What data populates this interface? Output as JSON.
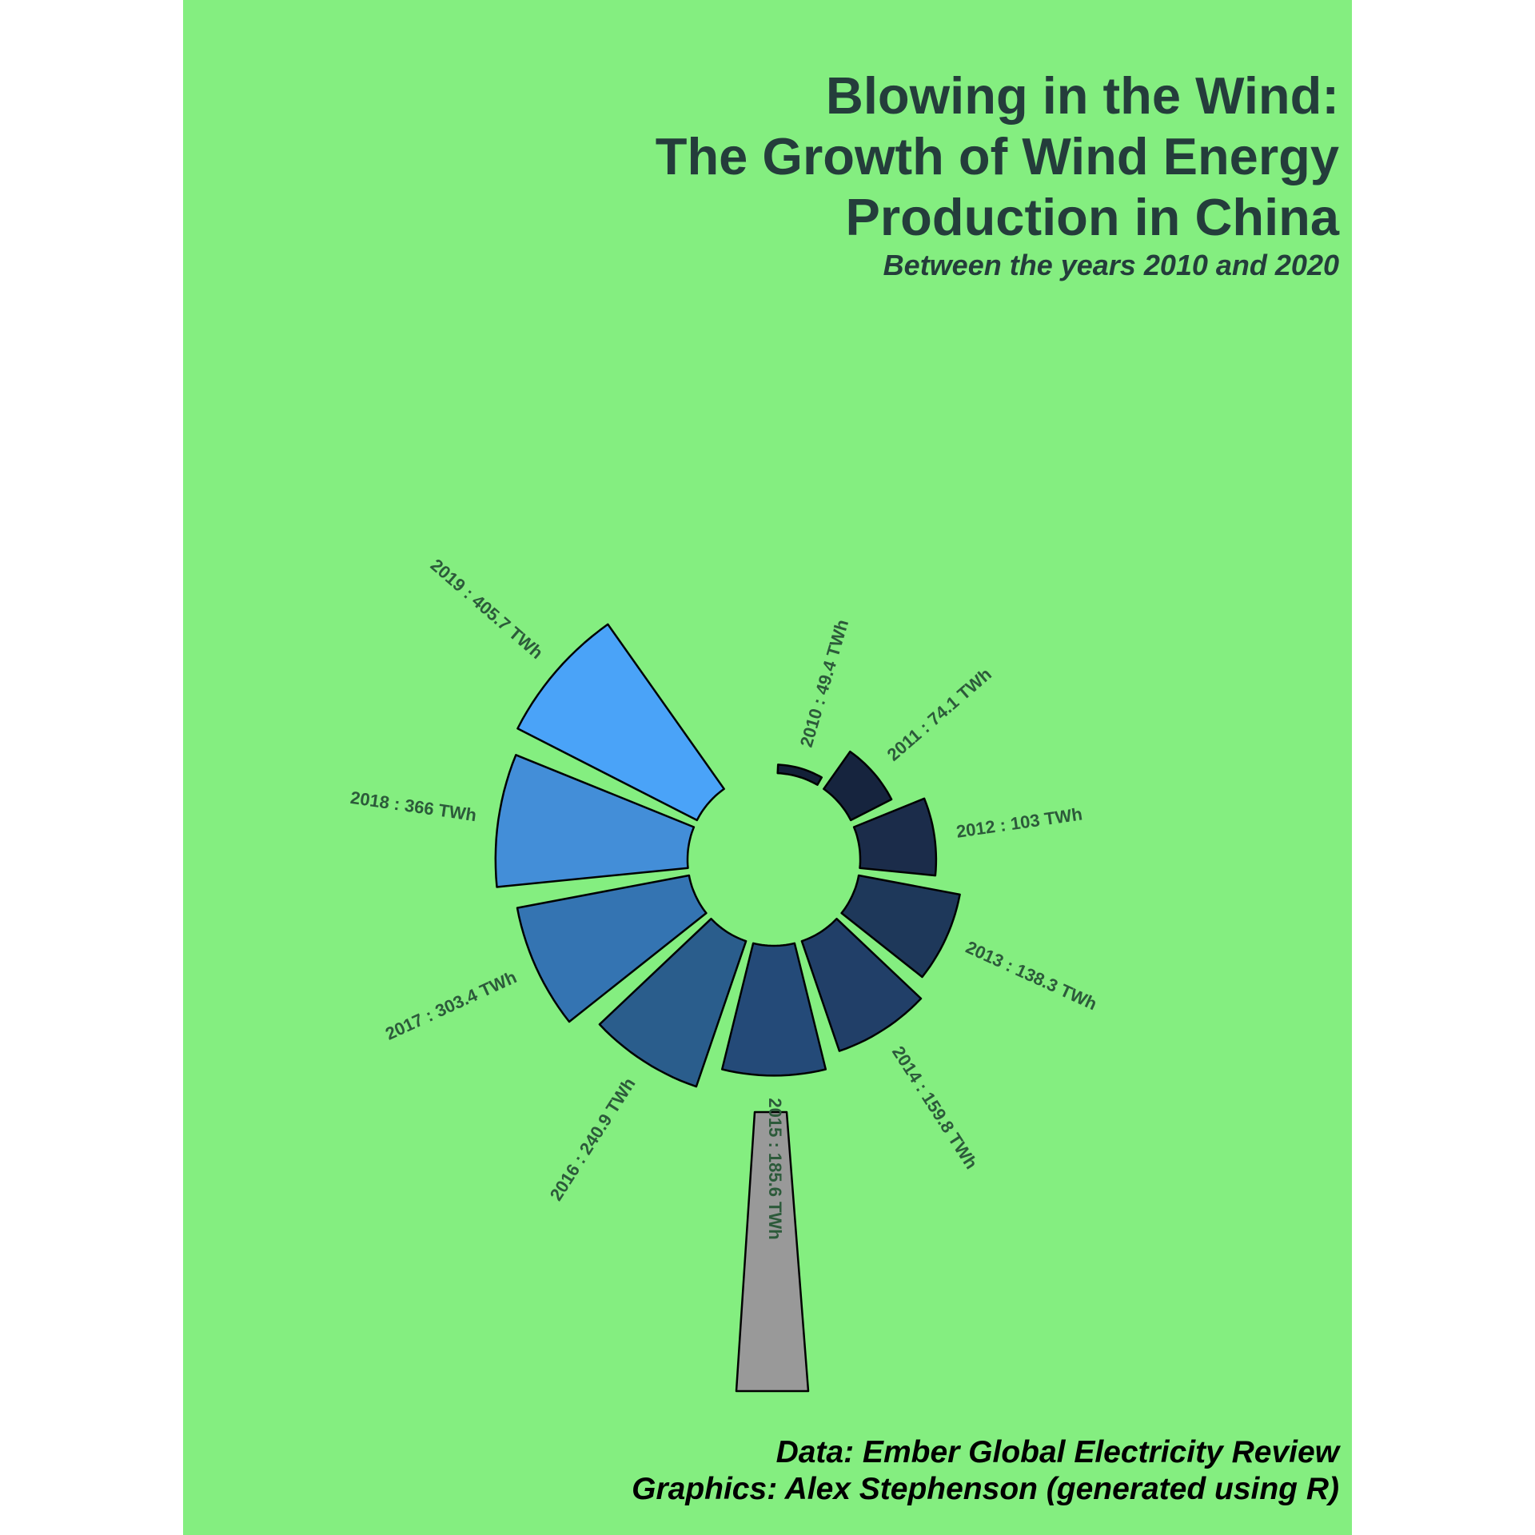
{
  "page": {
    "title_lines": [
      "Blowing in the Wind:",
      "The Growth of Wind Energy",
      "Production in China"
    ],
    "subtitle": "Between the years 2010 and 2020",
    "caption_lines": [
      "Data: Ember Global Electricity Review",
      "Graphics: Alex Stephenson (generated using R)"
    ]
  },
  "colors": {
    "background": "#84ee80",
    "title_text": "#243d3b",
    "label_text": "#2c5a3a",
    "caption_text": "#000000",
    "tower_fill": "#999999",
    "outline": "#000000"
  },
  "chart_data": {
    "type": "bar",
    "subtype": "circular bar (windmill)",
    "title": "Blowing in the Wind: The Growth of Wind Energy Production in China",
    "subtitle": "Between the years 2010 and 2020",
    "unit": "TWh",
    "categories": [
      "2010",
      "2011",
      "2012",
      "2013",
      "2014",
      "2015",
      "2016",
      "2017",
      "2018",
      "2019"
    ],
    "values": [
      49.4,
      74.1,
      103,
      138.3,
      159.8,
      185.6,
      240.9,
      303.4,
      366,
      405.7
    ],
    "labels": [
      "2010 : 49.4 TWh",
      "2011 : 74.1 TWh",
      "2012 : 103 TWh",
      "2013 : 138.3 TWh",
      "2014 : 159.8 TWh",
      "2015 : 185.6 TWh",
      "2016 : 240.9 TWh",
      "2017 : 303.4 TWh",
      "2018 : 366 TWh",
      "2019 : 405.7 TWh"
    ],
    "colors": [
      "#132038",
      "#16243e",
      "#1b2c4a",
      "#1e385a",
      "#213f68",
      "#244a78",
      "#2a5d8c",
      "#3474b2",
      "#438ed8",
      "#4aa3f8"
    ],
    "legend": "none",
    "grid": false
  }
}
